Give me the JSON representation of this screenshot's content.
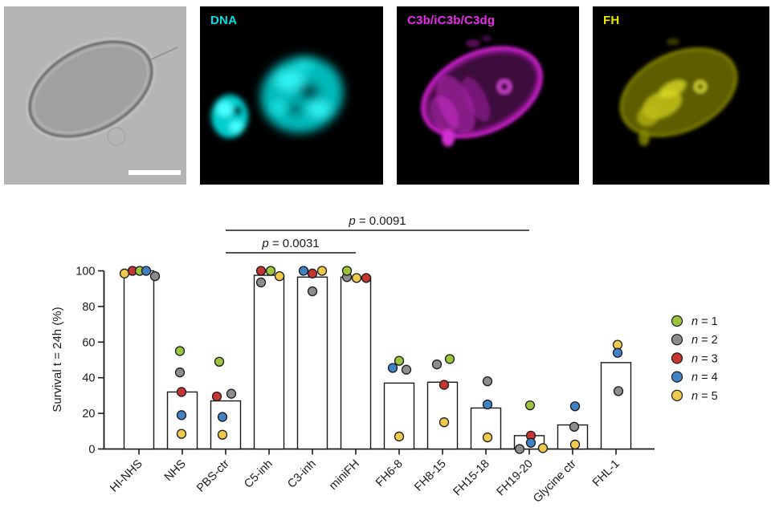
{
  "panels": {
    "brightfield": {
      "label": "",
      "type": "brightfield micrograph with scale bar"
    },
    "dna": {
      "label": "DNA",
      "color": "#00e0e0"
    },
    "c3b": {
      "label": "C3b/iC3b/C3dg",
      "color": "#ee2bee"
    },
    "fh": {
      "label": "FH",
      "color": "#e8e800"
    }
  },
  "chart_data": {
    "type": "bar",
    "title": "",
    "xlabel": "",
    "ylabel": "Survival t = 24h (%)",
    "ylim": [
      0,
      100
    ],
    "yticks": [
      0,
      20,
      40,
      60,
      80,
      100
    ],
    "grid": false,
    "legend_position": "right",
    "categories": [
      "HI-NHS",
      "NHS",
      "PBS-ctr",
      "C5-inh",
      "C3-inh",
      "miniFH",
      "FH6-8",
      "FH8-15",
      "FH15-18",
      "FH19-20",
      "Glycine ctr",
      "FHL-1"
    ],
    "bar_values": [
      100,
      32,
      27,
      97.5,
      96.5,
      96.5,
      37,
      37.5,
      23,
      7.5,
      13.5,
      48.5
    ],
    "colors": {
      "1": "#9bc53d",
      "2": "#8d8d8d",
      "3": "#c53531",
      "4": "#4182c4",
      "5": "#efc94c"
    },
    "legend": [
      {
        "n": 1,
        "label": "n = 1",
        "color": "#9bc53d"
      },
      {
        "n": 2,
        "label": "n = 2",
        "color": "#8d8d8d"
      },
      {
        "n": 3,
        "label": "n = 3",
        "color": "#c53531"
      },
      {
        "n": 4,
        "label": "n = 4",
        "color": "#4182c4"
      },
      {
        "n": 5,
        "label": "n = 5",
        "color": "#efc94c"
      }
    ],
    "points": {
      "HI-NHS": [
        {
          "n": 5,
          "v": 98.5,
          "dx": -18
        },
        {
          "n": 3,
          "v": 100,
          "dx": -8
        },
        {
          "n": 1,
          "v": 100,
          "dx": 1
        },
        {
          "n": 4,
          "v": 100,
          "dx": 9
        },
        {
          "n": 2,
          "v": 97,
          "dx": 20
        }
      ],
      "NHS": [
        {
          "n": 1,
          "v": 55,
          "dx": -3
        },
        {
          "n": 2,
          "v": 43,
          "dx": -3
        },
        {
          "n": 3,
          "v": 32,
          "dx": -1
        },
        {
          "n": 4,
          "v": 19,
          "dx": -1
        },
        {
          "n": 5,
          "v": 8.5,
          "dx": -1
        }
      ],
      "PBS-ctr": [
        {
          "n": 1,
          "v": 49,
          "dx": -8
        },
        {
          "n": 2,
          "v": 31,
          "dx": 7
        },
        {
          "n": 3,
          "v": 29.5,
          "dx": -11
        },
        {
          "n": 4,
          "v": 18,
          "dx": -4
        },
        {
          "n": 5,
          "v": 8,
          "dx": -4
        }
      ],
      "C5-inh": [
        {
          "n": 2,
          "v": 93.5,
          "dx": -10
        },
        {
          "n": 3,
          "v": 100,
          "dx": -10
        },
        {
          "n": 1,
          "v": 100,
          "dx": 2
        },
        {
          "n": 5,
          "v": 97,
          "dx": 13
        }
      ],
      "C3-inh": [
        {
          "n": 4,
          "v": 100,
          "dx": -11
        },
        {
          "n": 3,
          "v": 98.5,
          "dx": 0
        },
        {
          "n": 5,
          "v": 100,
          "dx": 12
        },
        {
          "n": 2,
          "v": 88.5,
          "dx": 0
        }
      ],
      "miniFH": [
        {
          "n": 2,
          "v": 96.5,
          "dx": -11
        },
        {
          "n": 5,
          "v": 96,
          "dx": 1
        },
        {
          "n": 3,
          "v": 96,
          "dx": 13
        },
        {
          "n": 1,
          "v": 100,
          "dx": -11
        }
      ],
      "FH6-8": [
        {
          "n": 4,
          "v": 45.5,
          "dx": -8
        },
        {
          "n": 1,
          "v": 49.5,
          "dx": 0
        },
        {
          "n": 2,
          "v": 44.5,
          "dx": 9
        },
        {
          "n": 5,
          "v": 7,
          "dx": 0
        }
      ],
      "FH8-15": [
        {
          "n": 2,
          "v": 47.5,
          "dx": -7
        },
        {
          "n": 1,
          "v": 50.5,
          "dx": 9
        },
        {
          "n": 3,
          "v": 36,
          "dx": 2
        },
        {
          "n": 5,
          "v": 15,
          "dx": 2
        }
      ],
      "FH15-18": [
        {
          "n": 2,
          "v": 38,
          "dx": 2
        },
        {
          "n": 4,
          "v": 25,
          "dx": 2
        },
        {
          "n": 5,
          "v": 6.5,
          "dx": 2
        }
      ],
      "FH19-20": [
        {
          "n": 1,
          "v": 24.5,
          "dx": 1
        },
        {
          "n": 3,
          "v": 7.5,
          "dx": 2
        },
        {
          "n": 4,
          "v": 3.5,
          "dx": 2
        },
        {
          "n": 2,
          "v": 0,
          "dx": -12
        },
        {
          "n": 5,
          "v": 0.5,
          "dx": 17
        }
      ],
      "Glycine ctr": [
        {
          "n": 4,
          "v": 24,
          "dx": 3
        },
        {
          "n": 2,
          "v": 12.5,
          "dx": 2
        },
        {
          "n": 5,
          "v": 2.5,
          "dx": 3
        }
      ],
      "FHL-1": [
        {
          "n": 5,
          "v": 58.5,
          "dx": 2
        },
        {
          "n": 4,
          "v": 54,
          "dx": 2
        },
        {
          "n": 2,
          "v": 32.5,
          "dx": 3
        }
      ]
    },
    "significance": [
      {
        "label": "p = 0.0091",
        "from": "PBS-ctr",
        "to": "FH19-20",
        "y": 37
      },
      {
        "label": "p = 0.0031",
        "from": "PBS-ctr",
        "to": "miniFH",
        "y": 65
      }
    ]
  }
}
